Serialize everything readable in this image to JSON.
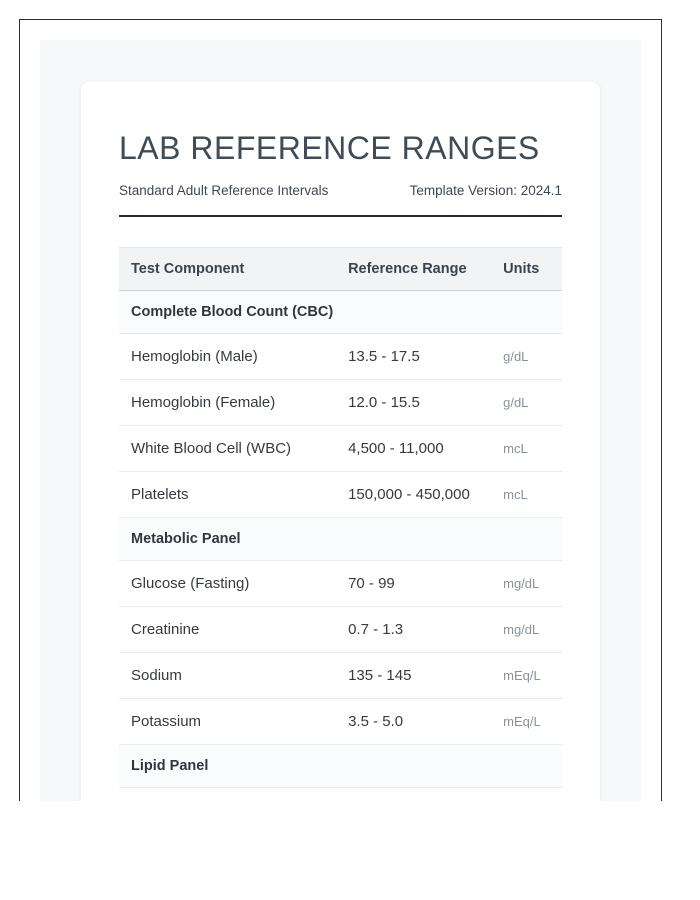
{
  "page": {
    "title": "LAB REFERENCE RANGES",
    "subtitle": "Standard Adult Reference Intervals",
    "version_label": "Template Version: 2024.1"
  },
  "colors": {
    "frame_border": "#2f2f2f",
    "surface_background": "#f6f8fa",
    "header_row_background": "#f1f3f4",
    "section_row_background": "#fafbfc",
    "divider_dark": "#272c31",
    "units_text": "#8a9299",
    "title_text": "#414b55"
  },
  "table": {
    "columns": [
      "Test Component",
      "Reference Range",
      "Units"
    ],
    "sections": [
      {
        "name": "Complete Blood Count (CBC)",
        "rows": [
          {
            "component": "Hemoglobin (Male)",
            "range": "13.5 - 17.5",
            "units": "g/dL"
          },
          {
            "component": "Hemoglobin (Female)",
            "range": "12.0 - 15.5",
            "units": "g/dL"
          },
          {
            "component": "White Blood Cell (WBC)",
            "range": "4,500 - 11,000",
            "units": "mcL"
          },
          {
            "component": "Platelets",
            "range": "150,000 - 450,000",
            "units": "mcL"
          }
        ]
      },
      {
        "name": "Metabolic Panel",
        "rows": [
          {
            "component": "Glucose (Fasting)",
            "range": "70 - 99",
            "units": "mg/dL"
          },
          {
            "component": "Creatinine",
            "range": "0.7 - 1.3",
            "units": "mg/dL"
          },
          {
            "component": "Sodium",
            "range": "135 - 145",
            "units": "mEq/L"
          },
          {
            "component": "Potassium",
            "range": "3.5 - 5.0",
            "units": "mEq/L"
          }
        ]
      },
      {
        "name": "Lipid Panel",
        "rows": []
      }
    ]
  }
}
